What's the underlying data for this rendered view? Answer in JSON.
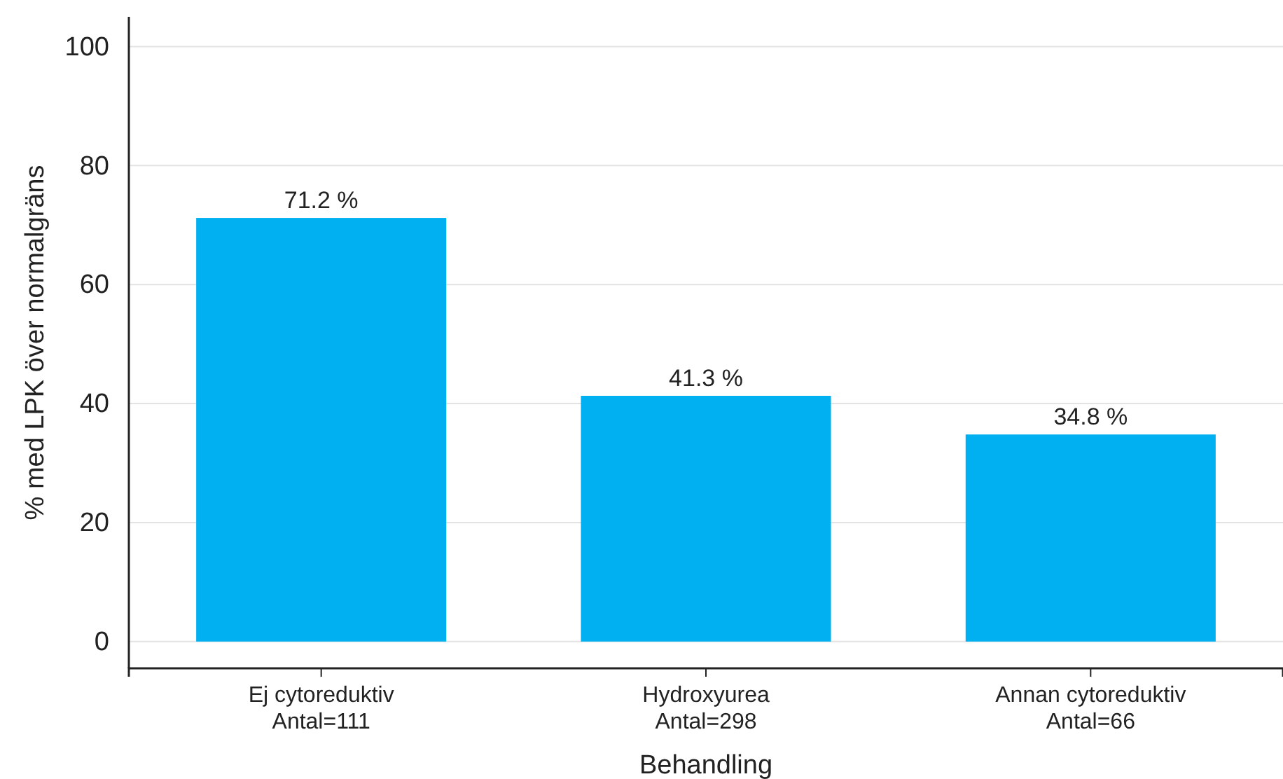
{
  "chart_data": {
    "type": "bar",
    "xlabel": "Behandling",
    "ylabel": "% med LPK över normalgräns",
    "categories": [
      "Ej cytoreduktiv\nAntal=111",
      "Hydroxyurea\nAntal=298",
      "Annan cytoreduktiv\nAntal=66"
    ],
    "values": [
      71.2,
      41.3,
      34.8
    ],
    "color": "#00b0f0",
    "value_labels": [
      "71.2 %",
      "41.3 %",
      "34.8 %"
    ],
    "ylim": [
      -4.5,
      105
    ],
    "yticks": [
      0,
      20,
      40,
      60,
      80,
      100
    ],
    "grid": "y"
  }
}
